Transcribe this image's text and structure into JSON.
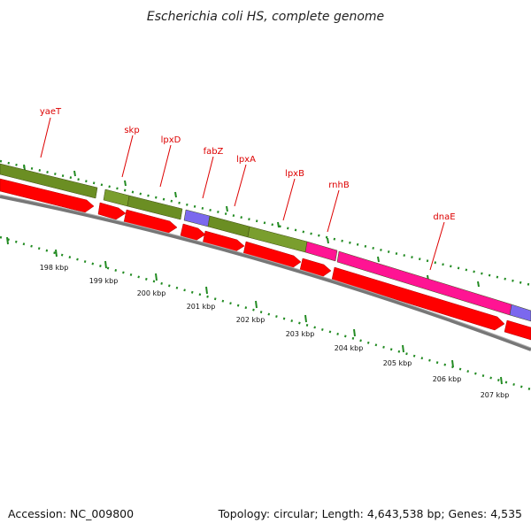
{
  "title": "Escherichia coli HS, complete genome",
  "gene_labels": [
    {
      "name": "gene-label-yaeT",
      "text": "yaeT"
    },
    {
      "name": "gene-label-skp",
      "text": "skp"
    },
    {
      "name": "gene-label-lpxD",
      "text": "lpxD"
    },
    {
      "name": "gene-label-fabZ",
      "text": "fabZ"
    },
    {
      "name": "gene-label-lpxA",
      "text": "lpxA"
    },
    {
      "name": "gene-label-lpxB",
      "text": "lpxB"
    },
    {
      "name": "gene-label-rnhB",
      "text": "rnhB"
    },
    {
      "name": "gene-label-dnaE",
      "text": "dnaE"
    }
  ],
  "kbp_labels": [
    "198 kbp",
    "199 kbp",
    "200 kbp",
    "201 kbp",
    "202 kbp",
    "203 kbp",
    "204 kbp",
    "205 kbp",
    "206 kbp",
    "207 kbp"
  ],
  "footer": {
    "accession": "Accession: NC_009800",
    "stats": "Topology: circular; Length: 4,643,538 bp; Genes: 4,535"
  },
  "colors": {
    "olive": "#6b8e23",
    "olive_light": "#8bb040",
    "purple": "#7b68ee",
    "magenta": "#ff1493",
    "red": "#ff0000",
    "backbone": "#808080",
    "tick": "#228b22",
    "label": "#dd0000"
  }
}
